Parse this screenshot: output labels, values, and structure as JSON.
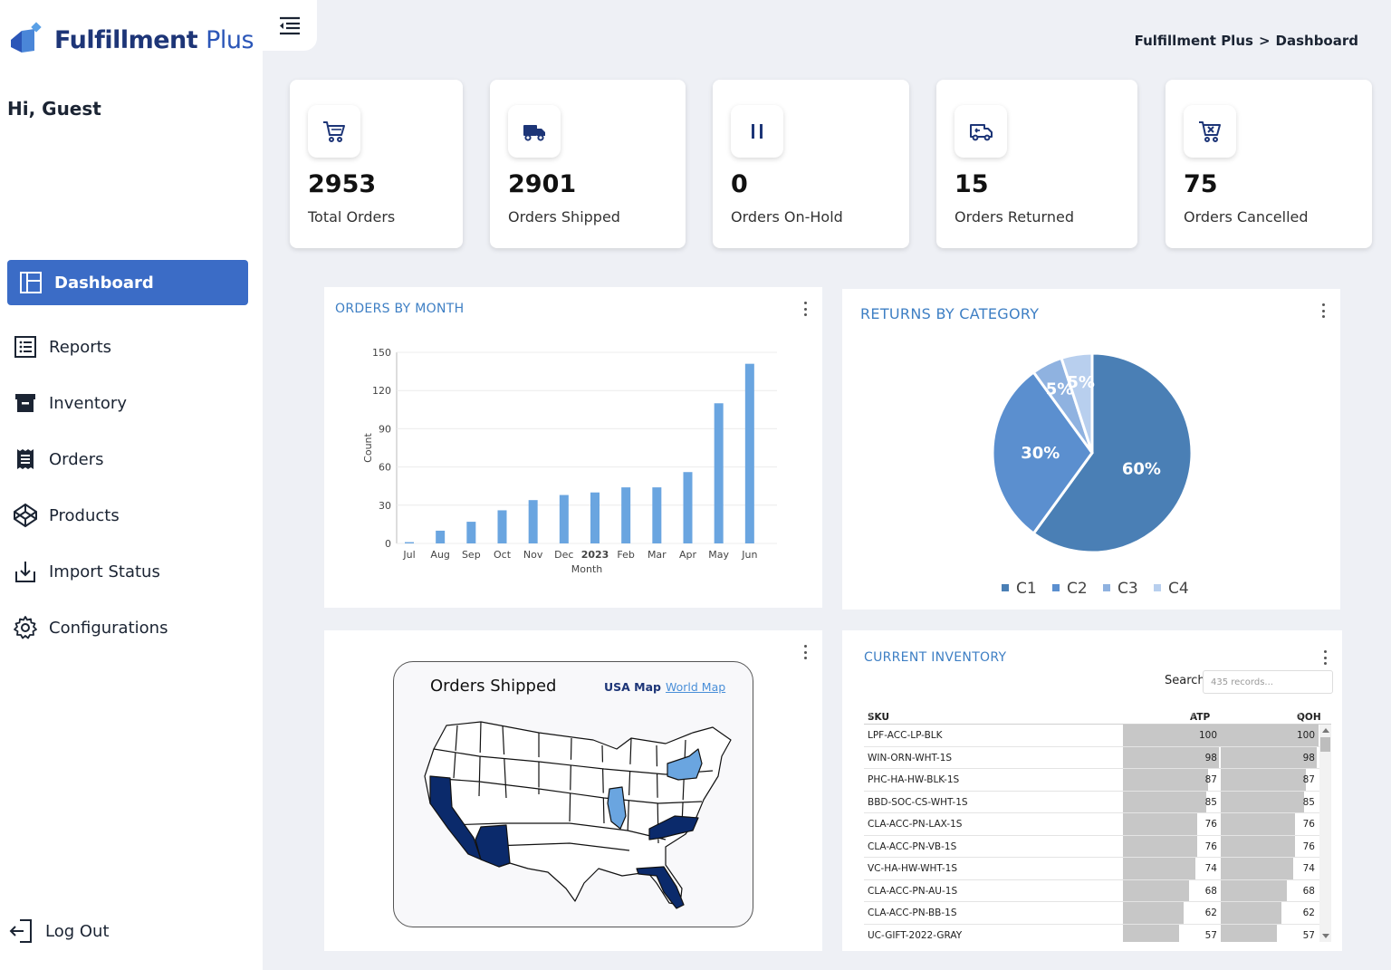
{
  "app": {
    "logo_main": "Fulfillment",
    "logo_plus": "Plus"
  },
  "user": {
    "greeting": "Hi, Guest"
  },
  "sidebar": {
    "items": [
      {
        "label": "Dashboard",
        "icon": "dashboard-icon"
      },
      {
        "label": "Reports",
        "icon": "list-icon"
      },
      {
        "label": "Inventory",
        "icon": "archive-icon"
      },
      {
        "label": "Orders",
        "icon": "receipt-icon"
      },
      {
        "label": "Products",
        "icon": "codepen-icon"
      },
      {
        "label": "Import Status",
        "icon": "import-icon"
      },
      {
        "label": "Configurations",
        "icon": "gear-icon"
      }
    ],
    "logout": "Log Out"
  },
  "breadcrumb": {
    "root": "Fulfillment Plus",
    "separator": ">",
    "current": "Dashboard"
  },
  "stats": [
    {
      "value": "2953",
      "label": "Total Orders",
      "icon": "cart-icon"
    },
    {
      "value": "2901",
      "label": "Orders Shipped",
      "icon": "truck-icon"
    },
    {
      "value": "0",
      "label": "Orders On-Hold",
      "icon": "pause-icon"
    },
    {
      "value": "15",
      "label": "Orders Returned",
      "icon": "return-truck-icon"
    },
    {
      "value": "75",
      "label": "Orders Cancelled",
      "icon": "cart-cancel-icon"
    }
  ],
  "orders_chart": {
    "title": "ORDERS BY MONTH",
    "chart_data": {
      "type": "bar",
      "categories": [
        "Jul",
        "Aug",
        "Sep",
        "Oct",
        "Nov",
        "Dec",
        "2023",
        "Feb",
        "Mar",
        "Apr",
        "May",
        "Jun"
      ],
      "values": [
        1,
        10,
        17,
        26,
        34,
        38,
        40,
        44,
        44,
        56,
        110,
        141
      ],
      "xlabel": "Month",
      "ylabel": "Count",
      "ylim": [
        0,
        150
      ],
      "yticks": [
        0,
        30,
        60,
        90,
        120,
        150
      ],
      "color": "#6aa5e0"
    }
  },
  "returns_chart": {
    "title": "RETURNS BY CATEGORY",
    "chart_data": {
      "type": "pie",
      "labels": [
        "C1",
        "C2",
        "C3",
        "C4"
      ],
      "values": [
        60,
        30,
        5,
        5
      ],
      "display_labels": [
        "60%",
        "30%",
        "5%",
        "5%"
      ],
      "colors": [
        "#4a7fb5",
        "#5b8fcf",
        "#8fb2e0",
        "#b8cfee"
      ],
      "legend": "bottom"
    }
  },
  "map": {
    "title": "Orders Shipped",
    "tab_usa": "USA Map",
    "tab_world": "World Map",
    "highlight_dark": "#0b2a6b",
    "highlight_light": "#6aa5e0"
  },
  "inventory": {
    "title": "CURRENT INVENTORY",
    "search_label": "Search",
    "search_placeholder": "435 records...",
    "columns": [
      "SKU",
      "ATP",
      "QOH"
    ],
    "max": 100,
    "rows": [
      {
        "sku": "LPF-ACC-LP-BLK",
        "atp": 100,
        "qoh": 100
      },
      {
        "sku": "WIN-ORN-WHT-1S",
        "atp": 98,
        "qoh": 98
      },
      {
        "sku": "PHC-HA-HW-BLK-1S",
        "atp": 87,
        "qoh": 87
      },
      {
        "sku": "BBD-SOC-CS-WHT-1S",
        "atp": 85,
        "qoh": 85
      },
      {
        "sku": "CLA-ACC-PN-LAX-1S",
        "atp": 76,
        "qoh": 76
      },
      {
        "sku": "CLA-ACC-PN-VB-1S",
        "atp": 76,
        "qoh": 76
      },
      {
        "sku": "VC-HA-HW-WHT-1S",
        "atp": 74,
        "qoh": 74
      },
      {
        "sku": "CLA-ACC-PN-AU-1S",
        "atp": 68,
        "qoh": 68
      },
      {
        "sku": "CLA-ACC-PN-BB-1S",
        "atp": 62,
        "qoh": 62
      },
      {
        "sku": "UC-GIFT-2022-GRAY",
        "atp": 57,
        "qoh": 57
      }
    ]
  }
}
